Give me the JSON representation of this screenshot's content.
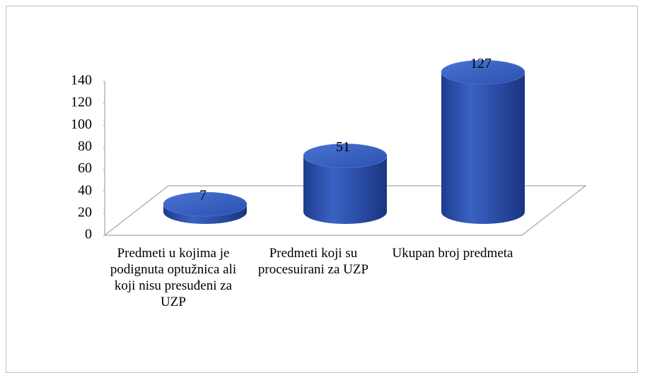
{
  "chart_data": {
    "type": "bar3d",
    "categories": [
      "Predmeti u kojima je podignuta optužnica ali koji nisu presuđeni za UZP",
      "Predmeti koji su procesuirani za UZP",
      "Ukupan broj predmeta"
    ],
    "values": [
      7,
      51,
      127
    ],
    "color": "#2c52b0",
    "ylim": [
      0,
      140
    ],
    "yticks": [
      0,
      20,
      40,
      60,
      80,
      100,
      120,
      140
    ]
  }
}
